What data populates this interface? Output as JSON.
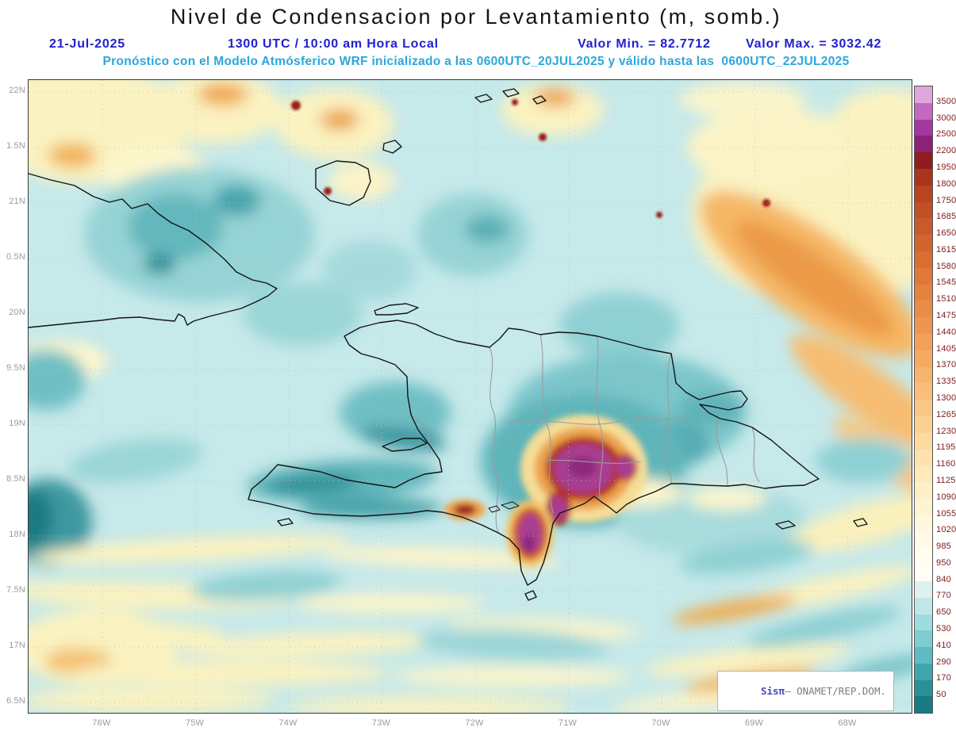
{
  "title": "Nivel de Condensacion por Levantamiento (m, somb.)",
  "header": {
    "date": "21-Jul-2025",
    "time": "1300 UTC / 10:00 am Hora Local",
    "min_label": "Valor Min. = 82.7712",
    "max_label": "Valor Max. = 3032.42",
    "forecast_line": "Pronóstico con el Modelo Atmósferico WRF inicializado a las 0600UTC_20JUL2025 y válido hasta las  0600UTC_22JUL2025"
  },
  "map": {
    "lat_labels": [
      "22N",
      "1.5N",
      "21N",
      "0.5N",
      "20N",
      "9.5N",
      "19N",
      "8.5N",
      "18N",
      "7.5N",
      "17N",
      "6.5N"
    ],
    "lon_labels": [
      "76W",
      "75W",
      "74W",
      "73W",
      "72W",
      "71W",
      "70W",
      "69W",
      "68W"
    ],
    "attribution": {
      "prefix": "Sisπ",
      "suffix": "– ONAMET/REP.DOM."
    }
  },
  "colorbar": {
    "labels": [
      "3500",
      "3000",
      "2500",
      "2200",
      "1950",
      "1800",
      "1750",
      "1685",
      "1650",
      "1615",
      "1580",
      "1545",
      "1510",
      "1475",
      "1440",
      "1405",
      "1370",
      "1335",
      "1300",
      "1265",
      "1230",
      "1195",
      "1160",
      "1125",
      "1090",
      "1055",
      "1020",
      "985",
      "950",
      "840",
      "770",
      "650",
      "530",
      "410",
      "290",
      "170",
      "50"
    ],
    "colors": [
      "#dfa6da",
      "#c469c0",
      "#a438a0",
      "#8c2177",
      "#8f1d1d",
      "#a9351c",
      "#b84420",
      "#c25026",
      "#ca5a2a",
      "#d2642e",
      "#d96e33",
      "#df7839",
      "#e58240",
      "#ea8c48",
      "#ee9651",
      "#f2a05a",
      "#f5aa64",
      "#f7b46f",
      "#f9be7a",
      "#fac886",
      "#fbd193",
      "#fcdaa0",
      "#fde2ad",
      "#fde9ba",
      "#feefc7",
      "#fef4d3",
      "#fef8de",
      "#fffbe8",
      "#fffdf0",
      "#fffef5",
      "#ddf2f0",
      "#c0e7e8",
      "#a0dbde",
      "#7fcdd1",
      "#5dbcc1",
      "#3fa6ac",
      "#2a9098",
      "#1a7a83"
    ]
  },
  "colors": {
    "header_blue": "#2121cc",
    "header_cyan": "#2ba7dc",
    "axis_gray": "#9a9a9a",
    "colorbar_label": "#7d1a1a",
    "sea_background": "#c6e9ea"
  }
}
